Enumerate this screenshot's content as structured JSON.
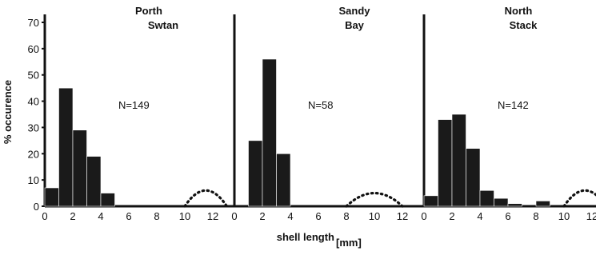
{
  "chart_data": {
    "type": "bar",
    "ylabel": "% occurence",
    "xlabel": "shell length",
    "xlabel_unit": "[mm]",
    "ylim": [
      0,
      70
    ],
    "xlim": [
      0,
      12
    ],
    "yticks": [
      0,
      10,
      20,
      30,
      40,
      50,
      60,
      70
    ],
    "xticks": [
      0,
      2,
      4,
      6,
      8,
      10,
      12
    ],
    "bin_width": 1,
    "panels": [
      {
        "title": [
          "Porth",
          "Swtan"
        ],
        "n_label": "N=149",
        "bins": [
          0,
          1,
          2,
          3,
          4
        ],
        "values": [
          7,
          45,
          29,
          19,
          5
        ],
        "dotted_curve": {
          "from": 10,
          "to": 13,
          "peak": 6
        }
      },
      {
        "title": [
          "Sandy",
          "Bay"
        ],
        "n_label": "N=58",
        "bins": [
          1,
          2,
          3
        ],
        "values": [
          25,
          56,
          20
        ],
        "dotted_curve": {
          "from": 8,
          "to": 12,
          "peak": 5
        }
      },
      {
        "title": [
          "North",
          "Stack"
        ],
        "n_label": "N=142",
        "bins": [
          0,
          1,
          2,
          3,
          4,
          5,
          6,
          7,
          8
        ],
        "values": [
          4,
          33,
          35,
          22,
          6,
          3,
          1,
          0,
          2
        ],
        "dotted_curve": {
          "from": 10,
          "to": 13,
          "peak": 6
        }
      }
    ]
  }
}
